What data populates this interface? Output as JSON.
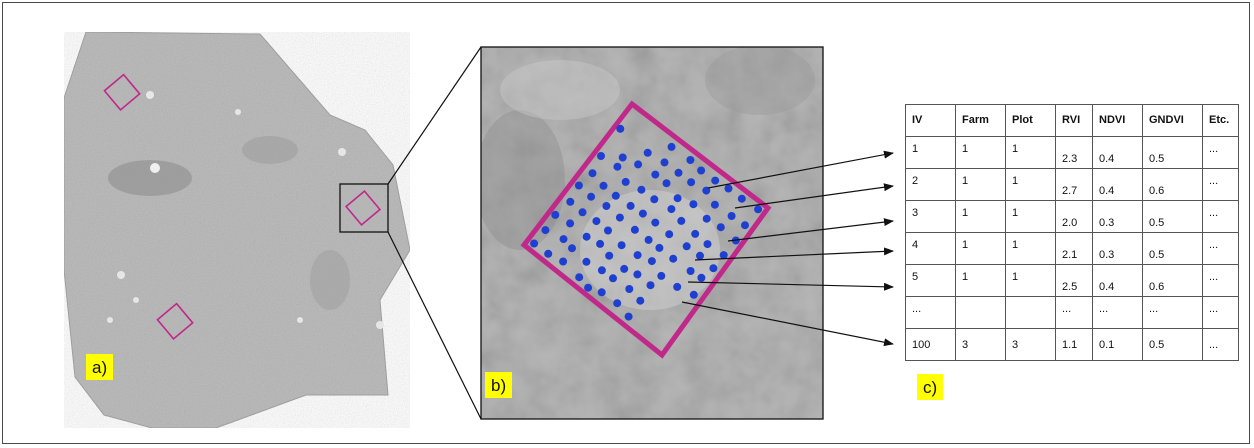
{
  "panels": {
    "a_label": "a)",
    "b_label": "b)",
    "c_label": "c)"
  },
  "colors": {
    "plot_outline": "#c0288a",
    "point": "#1f3fd0",
    "label_bg": "#ffff00",
    "field_gray": "#bdbdbd"
  },
  "table": {
    "headers": [
      "IV",
      "Farm",
      "Plot",
      "RVI",
      "NDVI",
      "GNDVI",
      "Etc."
    ],
    "rows": [
      [
        "1",
        "1",
        "1",
        "2.3",
        "0.4",
        "0.5",
        "..."
      ],
      [
        "2",
        "1",
        "1",
        "2.7",
        "0.4",
        "0.6",
        "..."
      ],
      [
        "3",
        "1",
        "1",
        "2.0",
        "0.3",
        "0.5",
        "..."
      ],
      [
        "4",
        "1",
        "1",
        "2.1",
        "0.3",
        "0.5",
        "..."
      ],
      [
        "5",
        "1",
        "1",
        "2.5",
        "0.4",
        "0.6",
        "..."
      ],
      [
        "...",
        "",
        "",
        "...",
        "...",
        "...",
        "..."
      ],
      [
        "100",
        "3",
        "3",
        "1.1",
        "0.1",
        "0.5",
        "..."
      ]
    ]
  }
}
